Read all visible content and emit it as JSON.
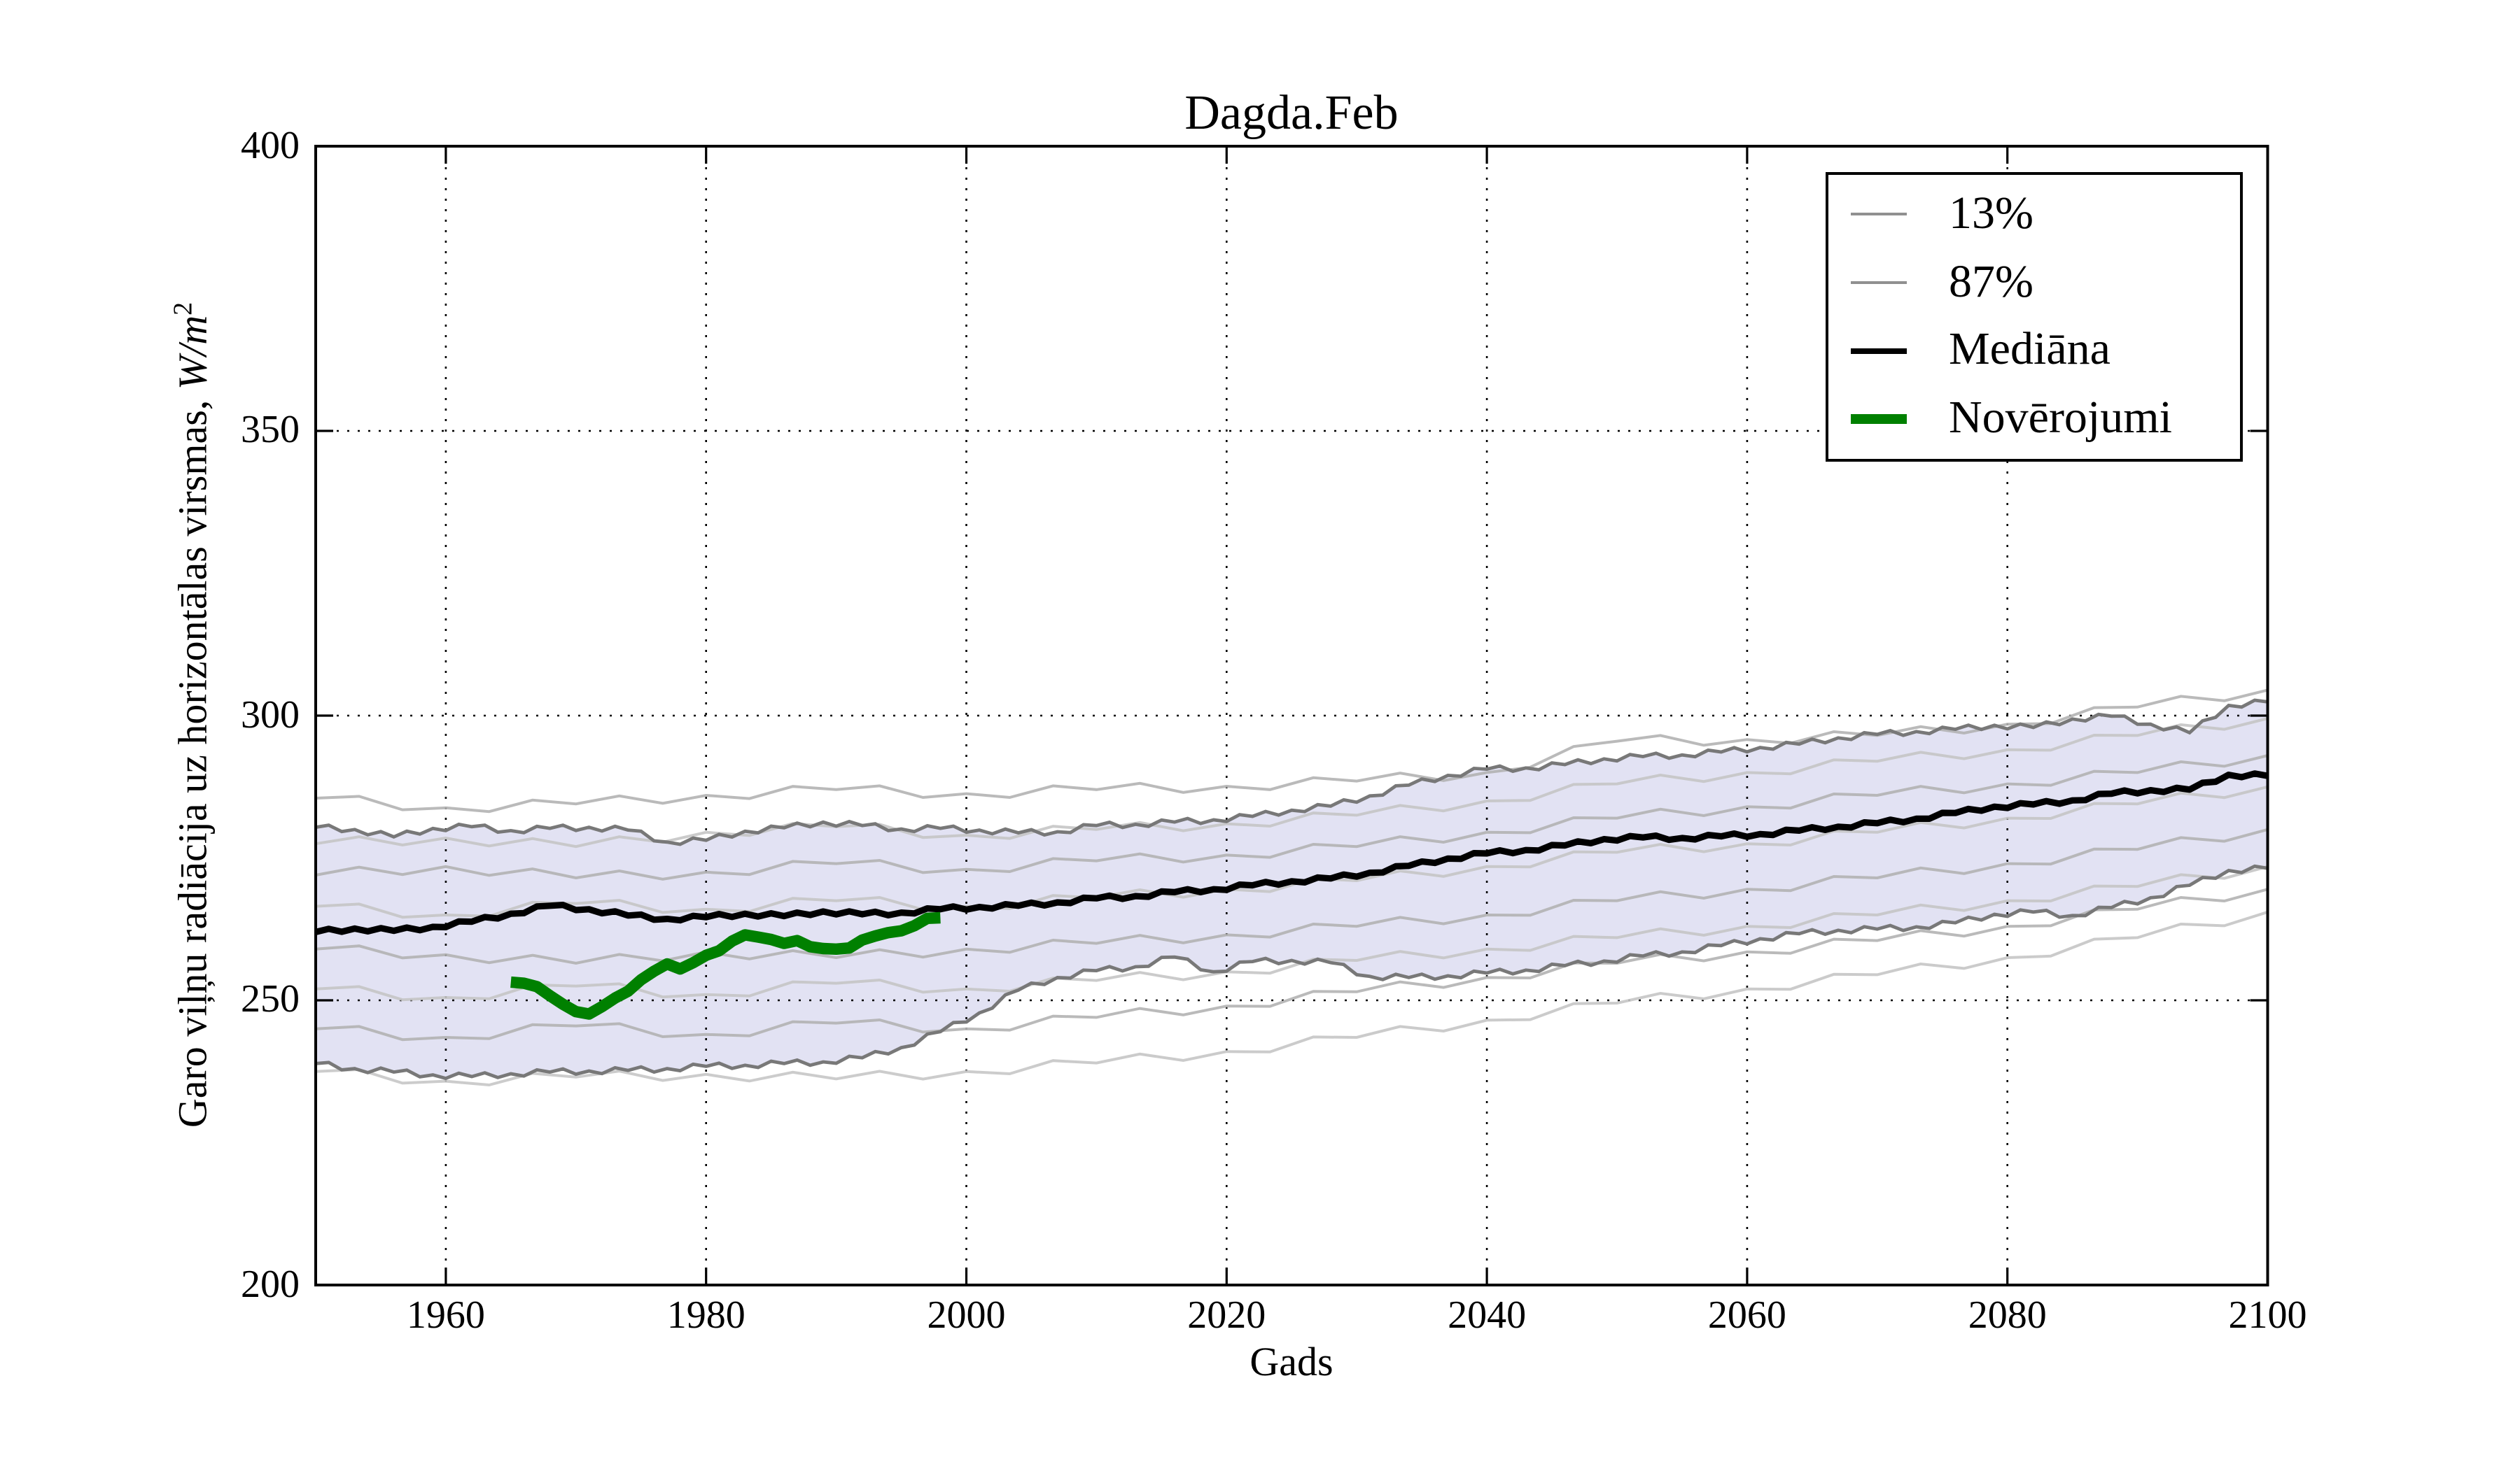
{
  "title": "Dagda.Feb",
  "axes": {
    "xlabel": "Gads",
    "ylabel_main": "Garo viļņu radiācija uz horizontālas virsmas, ",
    "ylabel_math": "W/m",
    "ylabel_sup": "2",
    "xlim": [
      1950,
      2100
    ],
    "ylim": [
      200,
      400
    ],
    "x_ticks": [
      1960,
      1980,
      2000,
      2020,
      2040,
      2060,
      2080,
      2100
    ],
    "y_ticks": [
      200,
      250,
      300,
      350,
      400
    ],
    "grid": "dotted black"
  },
  "legend": {
    "position": "upper right",
    "entries": [
      {
        "label": "13%",
        "color": "#909090",
        "sample_height": 2
      },
      {
        "label": "87%",
        "color": "#909090",
        "sample_height": 2
      },
      {
        "label": "Mediāna",
        "color": "#000000",
        "sample_height": 4.5
      },
      {
        "label": "Novērojumi",
        "color": "#008000",
        "sample_height": 7
      }
    ]
  },
  "chart_data": {
    "type": "line",
    "title": "Dagda.Feb",
    "xlabel": "Gads",
    "ylabel": "Garo viļņu radiācija uz horizontālas virsmas, W/m²",
    "xlim": [
      1950,
      2100
    ],
    "ylim": [
      200,
      400
    ],
    "legend_position": "upper right",
    "grid": "dotted",
    "model_years": [
      1950,
      1953,
      1956,
      1959,
      1962,
      1965,
      1968,
      1971,
      1974,
      1977,
      1980,
      1983,
      1986,
      1989,
      1992,
      1995,
      1998,
      2001,
      2004,
      2007,
      2010,
      2013,
      2016,
      2019,
      2022,
      2025,
      2028,
      2031,
      2034,
      2037,
      2040,
      2043,
      2046,
      2049,
      2052,
      2055,
      2058,
      2061,
      2064,
      2067,
      2070,
      2073,
      2076,
      2079,
      2082,
      2085,
      2088,
      2091,
      2094,
      2097,
      2100
    ],
    "median": {
      "name": "Mediāna",
      "color": "#000000",
      "values": [
        262.0,
        262.6,
        262.2,
        262.9,
        263.8,
        265.2,
        266.6,
        266.0,
        264.9,
        264.3,
        264.6,
        265.2,
        264.8,
        265.6,
        265.1,
        265.4,
        266.0,
        266.4,
        266.6,
        267.2,
        267.9,
        268.3,
        269.0,
        269.5,
        270.2,
        270.9,
        271.4,
        272.4,
        273.6,
        274.9,
        275.8,
        276.4,
        277.2,
        278.3,
        278.6,
        278.5,
        278.8,
        279.2,
        279.8,
        280.5,
        281.1,
        281.9,
        282.9,
        284.0,
        284.4,
        285.1,
        286.3,
        286.9,
        287.0,
        289.6,
        289.4
      ]
    },
    "band": {
      "low_label": "13%",
      "high_label": "87%",
      "fill": "#e2e2f3",
      "edge_color": "#787878",
      "low": [
        238.9,
        238.0,
        237.4,
        236.9,
        236.6,
        237.1,
        237.4,
        237.6,
        237.7,
        238.0,
        238.4,
        238.6,
        238.9,
        239.2,
        239.9,
        241.7,
        244.5,
        247.8,
        251.8,
        254.0,
        255.2,
        255.9,
        257.6,
        255.0,
        256.8,
        257.0,
        256.6,
        254.2,
        254.0,
        254.3,
        254.8,
        255.3,
        256.1,
        256.9,
        257.8,
        258.5,
        259.6,
        260.8,
        261.7,
        262.3,
        262.5,
        262.9,
        263.6,
        265.1,
        265.5,
        264.9,
        266.3,
        268.0,
        270.2,
        272.8,
        273.2
      ],
      "high": [
        280.4,
        280.0,
        278.7,
        280.2,
        280.5,
        279.8,
        280.2,
        280.4,
        279.9,
        277.8,
        278.1,
        279.7,
        280.3,
        281.3,
        280.7,
        280.1,
        280.2,
        279.9,
        279.4,
        279.6,
        280.7,
        280.9,
        281.3,
        281.7,
        282.3,
        283.4,
        284.1,
        285.9,
        287.8,
        289.5,
        290.6,
        290.8,
        291.4,
        292.4,
        292.8,
        293.1,
        293.6,
        294.4,
        295.0,
        296.1,
        296.7,
        297.2,
        297.6,
        298.3,
        297.9,
        299.4,
        299.9,
        298.5,
        297.0,
        301.8,
        302.4
      ]
    },
    "observations": {
      "name": "Novērojumi",
      "color": "#008000",
      "years": [
        1965,
        1966,
        1967,
        1968,
        1969,
        1970,
        1971,
        1972,
        1973,
        1974,
        1975,
        1976,
        1977,
        1978,
        1979,
        1980,
        1981,
        1982,
        1983,
        1984,
        1985,
        1986,
        1987,
        1988,
        1989,
        1990,
        1991,
        1992,
        1993,
        1994,
        1995,
        1996,
        1997,
        1998
      ],
      "values": [
        253.2,
        253.0,
        252.4,
        250.8,
        249.3,
        248.0,
        247.6,
        248.9,
        250.4,
        251.6,
        253.6,
        255.1,
        256.4,
        255.5,
        256.6,
        257.9,
        258.7,
        260.4,
        261.5,
        261.1,
        260.7,
        260.0,
        260.5,
        259.4,
        259.1,
        259.0,
        259.2,
        260.6,
        261.3,
        261.9,
        262.2,
        263.1,
        264.4,
        264.5
      ]
    },
    "ensemble": {
      "description": "individual climate model runs (thin light gray lines)",
      "color_a": "#b3b3b3",
      "color_b": "#c6c6c6",
      "years": [
        1950,
        1960,
        1970,
        1980,
        1990,
        2000,
        2010,
        2020,
        2030,
        2040,
        2050,
        2060,
        2070,
        2080,
        2090,
        2100
      ],
      "members": [
        [
          285.5,
          283.8,
          284.5,
          286.0,
          287.0,
          286.3,
          287.0,
          287.6,
          288.5,
          290.0,
          295.5,
          295.8,
          296.5,
          298.5,
          301.5,
          304.5
        ],
        [
          277.5,
          278.5,
          277.0,
          279.5,
          280.5,
          279.0,
          280.0,
          281.0,
          282.5,
          285.0,
          288.0,
          290.0,
          292.0,
          294.0,
          296.5,
          299.5
        ],
        [
          272.0,
          273.5,
          271.5,
          272.5,
          274.0,
          273.0,
          274.5,
          275.5,
          277.0,
          279.5,
          282.0,
          284.0,
          286.0,
          288.0,
          290.0,
          293.0
        ],
        [
          266.5,
          265.0,
          267.0,
          266.0,
          267.5,
          266.5,
          268.0,
          269.5,
          271.0,
          273.5,
          276.0,
          277.5,
          279.5,
          282.0,
          284.5,
          287.5
        ],
        [
          259.0,
          258.0,
          256.5,
          258.5,
          257.5,
          259.0,
          260.0,
          261.5,
          263.0,
          265.0,
          267.5,
          269.5,
          271.5,
          274.0,
          276.5,
          280.0
        ],
        [
          252.0,
          250.5,
          252.5,
          251.0,
          253.0,
          252.0,
          253.5,
          255.0,
          257.0,
          259.0,
          261.0,
          263.0,
          265.0,
          267.5,
          270.0,
          273.5
        ],
        [
          245.0,
          243.5,
          245.5,
          244.0,
          246.0,
          245.0,
          247.0,
          249.0,
          251.5,
          254.0,
          256.5,
          258.5,
          260.5,
          263.0,
          266.0,
          269.5
        ],
        [
          237.5,
          235.8,
          236.5,
          237.0,
          236.2,
          237.5,
          239.0,
          241.0,
          243.5,
          246.5,
          249.5,
          252.0,
          254.5,
          257.5,
          261.0,
          265.5
        ]
      ]
    }
  }
}
